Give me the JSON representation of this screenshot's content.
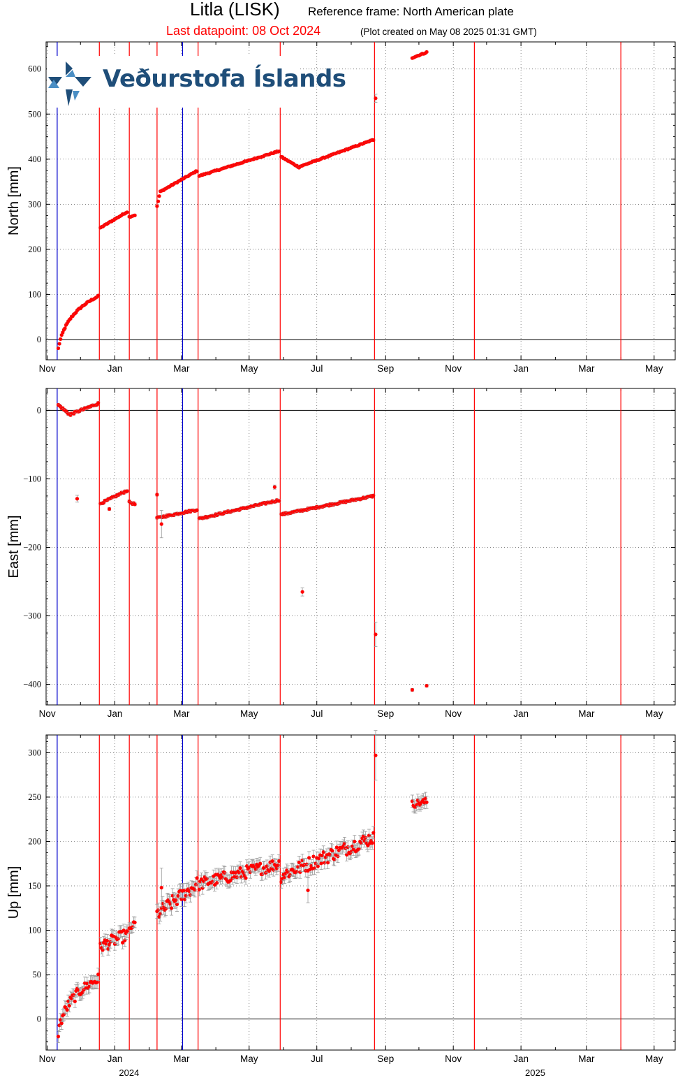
{
  "header": {
    "station": "Litla (LISK)",
    "reference_frame": "Reference frame: North American plate",
    "last_datapoint": "Last datapoint: 08 Oct 2024",
    "plot_created": "(Plot created on May 08 2025 01:31 GMT)"
  },
  "logo": {
    "text": "Veðurstofa Íslands",
    "color": "#1f4e79"
  },
  "colors": {
    "data": "#ff0000",
    "event_line_red": "#ff0000",
    "event_line_blue": "#0000cc",
    "error_bar": "#999999",
    "grid": "#555555"
  },
  "chart_data": {
    "type": "scatter",
    "x_axis": {
      "start": "2023-10-31",
      "end": "2025-05-20",
      "month_labels": [
        "Nov",
        "Jan",
        "Mar",
        "May",
        "Jul",
        "Sep",
        "Nov",
        "Jan",
        "Mar",
        "May"
      ],
      "month_dates": [
        "2023-11-01",
        "2024-01-01",
        "2024-03-01",
        "2024-05-01",
        "2024-07-01",
        "2024-09-01",
        "2024-11-01",
        "2025-01-01",
        "2025-03-01",
        "2025-05-01"
      ],
      "year_labels": [
        {
          "label": "2024",
          "date": "2024-01-05"
        },
        {
          "label": "2025",
          "date": "2025-01-05"
        }
      ]
    },
    "event_lines": {
      "red": [
        "2023-12-18",
        "2024-01-14",
        "2024-02-08",
        "2024-03-16",
        "2024-05-29",
        "2024-08-22",
        "2024-11-20",
        "2025-04-01"
      ],
      "blue": [
        "2023-11-10",
        "2024-03-02"
      ]
    },
    "panels": [
      {
        "key": "north",
        "ylabel": "North [mm]",
        "ylim": [
          -45,
          660
        ],
        "yticks": [
          0,
          100,
          200,
          300,
          400,
          500,
          600
        ],
        "grid": true,
        "segments": [
          {
            "from": "2023-11-11",
            "to": "2023-12-17",
            "start": -20,
            "end": 96,
            "shape": "log",
            "err": 2
          },
          {
            "from": "2023-12-19",
            "to": "2024-01-12",
            "start": 248,
            "end": 283,
            "err": 2
          },
          {
            "from": "2024-01-14",
            "to": "2024-01-19",
            "start": 272,
            "end": 276,
            "err": 2
          },
          {
            "from": "2024-02-08",
            "to": "2024-02-10",
            "start": 295,
            "end": 318,
            "err": 2
          },
          {
            "from": "2024-02-11",
            "to": "2024-03-15",
            "start": 328,
            "end": 374,
            "err": 2
          },
          {
            "from": "2024-03-17",
            "to": "2024-05-28",
            "start": 363,
            "end": 418,
            "err": 2
          },
          {
            "from": "2024-05-30",
            "to": "2024-06-15",
            "start": 405,
            "end": 382,
            "err": 2
          },
          {
            "from": "2024-06-16",
            "to": "2024-08-21",
            "start": 384,
            "end": 443,
            "err": 2
          },
          {
            "from": "2024-09-25",
            "to": "2024-10-08",
            "start": 625,
            "end": 637,
            "err": 2
          }
        ],
        "points": [
          {
            "date": "2024-08-23",
            "value": 535,
            "err": 9
          }
        ]
      },
      {
        "key": "east",
        "ylabel": "East [mm]",
        "ylim": [
          -430,
          32
        ],
        "yticks": [
          0,
          -100,
          -200,
          -300,
          -400
        ],
        "ytick_labels": [
          "0",
          "−100",
          "−200",
          "−300",
          "−400"
        ],
        "grid": true,
        "segments": [
          {
            "from": "2023-11-11",
            "to": "2023-11-22",
            "start": 8,
            "end": -7,
            "err": 2
          },
          {
            "from": "2023-11-23",
            "to": "2023-12-17",
            "start": -5,
            "end": 10,
            "err": 2
          },
          {
            "from": "2023-12-19",
            "to": "2024-01-12",
            "start": -136,
            "end": -117,
            "err": 2
          },
          {
            "from": "2024-01-14",
            "to": "2024-01-19",
            "start": -134,
            "end": -137,
            "err": 2
          },
          {
            "from": "2024-02-08",
            "to": "2024-03-15",
            "start": -157,
            "end": -145,
            "err": 2
          },
          {
            "from": "2024-03-17",
            "to": "2024-05-28",
            "start": -158,
            "end": -131,
            "err": 2
          },
          {
            "from": "2024-05-30",
            "to": "2024-08-21",
            "start": -152,
            "end": -125,
            "err": 2
          }
        ],
        "points": [
          {
            "date": "2023-11-28",
            "value": -129,
            "err": 5
          },
          {
            "date": "2023-12-27",
            "value": -144,
            "err": 2
          },
          {
            "date": "2024-02-08",
            "value": -123,
            "err": 2
          },
          {
            "date": "2024-02-12",
            "value": -166,
            "err": 20
          },
          {
            "date": "2024-05-24",
            "value": -112,
            "err": 3
          },
          {
            "date": "2024-06-18",
            "value": -265,
            "err": 6
          },
          {
            "date": "2024-08-23",
            "value": -327,
            "err": 18
          },
          {
            "date": "2024-09-25",
            "value": -408,
            "err": 2
          },
          {
            "date": "2024-10-08",
            "value": -402,
            "err": 2
          }
        ]
      },
      {
        "key": "up",
        "ylabel": "Up [mm]",
        "ylim": [
          -35,
          320
        ],
        "yticks": [
          0,
          50,
          100,
          150,
          200,
          250,
          300
        ],
        "grid": true,
        "segments": [
          {
            "from": "2023-11-11",
            "to": "2023-12-17",
            "start": -15,
            "end": 45,
            "shape": "log",
            "err": 7,
            "noise": 6
          },
          {
            "from": "2023-12-19",
            "to": "2024-01-12",
            "start": 82,
            "end": 95,
            "err": 7,
            "noise": 7
          },
          {
            "from": "2024-01-14",
            "to": "2024-01-19",
            "start": 100,
            "end": 108,
            "err": 6,
            "noise": 3
          },
          {
            "from": "2024-02-08",
            "to": "2024-03-15",
            "start": 118,
            "end": 152,
            "err": 8,
            "noise": 8
          },
          {
            "from": "2024-03-17",
            "to": "2024-05-28",
            "start": 152,
            "end": 175,
            "err": 7,
            "noise": 7
          },
          {
            "from": "2024-05-30",
            "to": "2024-08-21",
            "start": 162,
            "end": 205,
            "err": 7,
            "noise": 8
          },
          {
            "from": "2024-09-25",
            "to": "2024-10-08",
            "start": 242,
            "end": 245,
            "err": 7,
            "noise": 4
          }
        ],
        "points": [
          {
            "date": "2024-02-12",
            "value": 148,
            "err": 22
          },
          {
            "date": "2024-06-23",
            "value": 145,
            "err": 14
          },
          {
            "date": "2024-08-23",
            "value": 297,
            "err": 28
          }
        ]
      }
    ]
  }
}
